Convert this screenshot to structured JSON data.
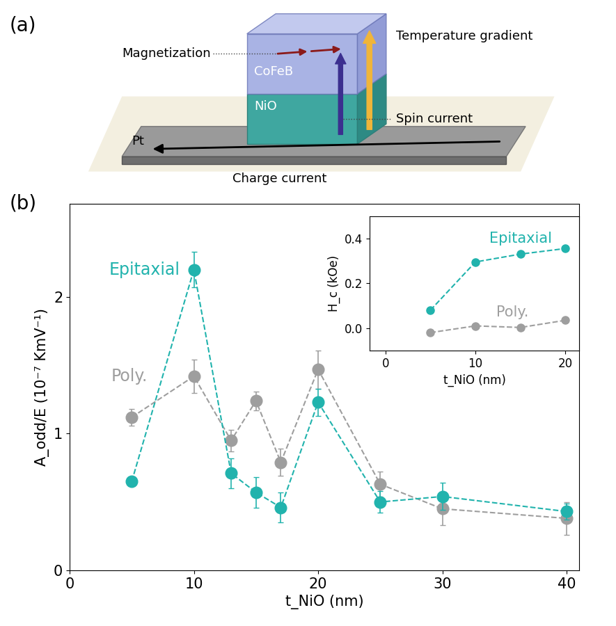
{
  "diagram": {
    "label": "(a)",
    "texts": {
      "magnetization": "Magnetization",
      "cofeb": "CoFeB",
      "nio": "NiO",
      "pt": "Pt",
      "temperature": "Temperature gradient",
      "spin": "Spin current",
      "charge": "Charge current"
    }
  },
  "chart_data": [
    {
      "type": "line",
      "panel_label": "(b)",
      "x_label": "t_NiO (nm)",
      "y_label": "A_odd/E (10⁻⁷ KmV⁻¹)",
      "x": [
        5,
        10,
        13,
        15,
        17,
        20,
        25,
        30,
        40
      ],
      "xlim": [
        0,
        41
      ],
      "xticks": [
        0,
        10,
        20,
        30,
        40
      ],
      "ylim": [
        0,
        2.68
      ],
      "yticks": [
        0,
        1,
        2
      ],
      "marker": "o",
      "line_style": "dashed",
      "series": [
        {
          "name": "Epitaxial",
          "color": "#21b3ad",
          "values": [
            0.65,
            2.2,
            0.71,
            0.57,
            0.46,
            1.23,
            0.5,
            0.54,
            0.43
          ],
          "errors": [
            0.03,
            0.13,
            0.11,
            0.11,
            0.11,
            0.1,
            0.08,
            0.1,
            0.06
          ]
        },
        {
          "name": "Poly.",
          "color": "#9e9e9e",
          "values": [
            1.12,
            1.42,
            0.95,
            1.24,
            0.79,
            1.47,
            0.63,
            0.45,
            0.38
          ],
          "errors": [
            0.06,
            0.12,
            0.08,
            0.07,
            0.1,
            0.14,
            0.09,
            0.12,
            0.12
          ]
        }
      ]
    },
    {
      "type": "line",
      "x_label": "t_NiO (nm)",
      "y_label": "H_c (kOe)",
      "x": [
        5,
        10,
        15,
        20
      ],
      "xlim": [
        -1.75,
        21.5
      ],
      "xticks": [
        0,
        10,
        20
      ],
      "ylim": [
        -0.1,
        0.5
      ],
      "yticks": [
        {
          "value": 0,
          "label": "0.0"
        },
        {
          "value": 0.2,
          "label": "0.2"
        },
        {
          "value": 0.4,
          "label": "0.4"
        }
      ],
      "marker": "o",
      "line_style": "dashed",
      "series": [
        {
          "name": "Epitaxial",
          "color": "#21b3ad",
          "values": [
            0.08,
            0.295,
            0.33,
            0.355
          ]
        },
        {
          "name": "Poly.",
          "color": "#9e9e9e",
          "values": [
            -0.02,
            0.01,
            0.003,
            0.035
          ]
        }
      ]
    }
  ]
}
